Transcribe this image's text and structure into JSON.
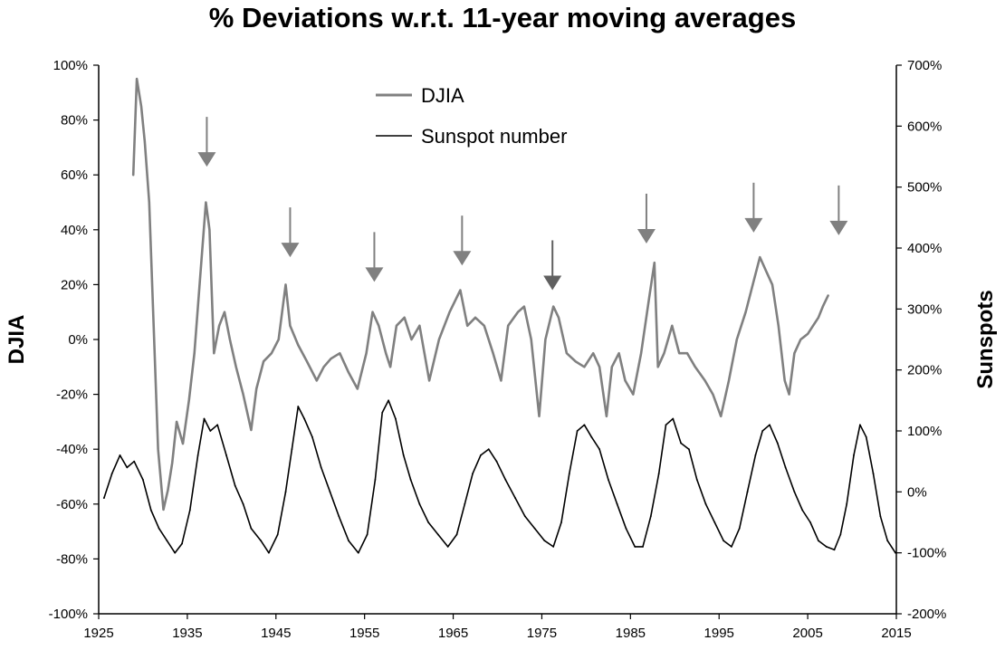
{
  "chart_data": {
    "type": "line",
    "title": "% Deviations w.r.t. 11-year moving averages",
    "xlabel": "",
    "ylabel": "DJIA",
    "y2label": "Sunspots",
    "xlim": [
      1925,
      2015
    ],
    "ylim": [
      -100,
      100
    ],
    "y2lim": [
      -200,
      700
    ],
    "x_ticks": [
      "1925",
      "1935",
      "1945",
      "1955",
      "1965",
      "1975",
      "1985",
      "1995",
      "2005",
      "2015"
    ],
    "y_ticks": [
      "100%",
      "80%",
      "60%",
      "40%",
      "20%",
      "0%",
      "-20%",
      "-40%",
      "-60%",
      "-80%",
      "-100%"
    ],
    "y2_ticks": [
      "700%",
      "600%",
      "500%",
      "400%",
      "300%",
      "200%",
      "100%",
      "0%",
      "-100%",
      "-200%"
    ],
    "legend": {
      "position": "top-center"
    },
    "grid": false,
    "series": [
      {
        "name": "DJIA",
        "axis": "left",
        "color": "#808080",
        "points": [
          [
            1928.9,
            60
          ],
          [
            1929.3,
            95
          ],
          [
            1929.8,
            85
          ],
          [
            1930.2,
            72
          ],
          [
            1930.7,
            50
          ],
          [
            1931.2,
            5
          ],
          [
            1931.7,
            -40
          ],
          [
            1932.3,
            -62
          ],
          [
            1932.8,
            -55
          ],
          [
            1933.3,
            -45
          ],
          [
            1933.8,
            -30
          ],
          [
            1934.5,
            -38
          ],
          [
            1935.2,
            -22
          ],
          [
            1935.8,
            -5
          ],
          [
            1936.5,
            25
          ],
          [
            1937.1,
            50
          ],
          [
            1937.5,
            40
          ],
          [
            1938.0,
            -5
          ],
          [
            1938.6,
            5
          ],
          [
            1939.2,
            10
          ],
          [
            1939.8,
            0
          ],
          [
            1940.5,
            -10
          ],
          [
            1941.3,
            -20
          ],
          [
            1942.2,
            -33
          ],
          [
            1942.8,
            -18
          ],
          [
            1943.6,
            -8
          ],
          [
            1944.5,
            -5
          ],
          [
            1945.3,
            0
          ],
          [
            1946.1,
            20
          ],
          [
            1946.6,
            5
          ],
          [
            1947.5,
            -2
          ],
          [
            1948.5,
            -8
          ],
          [
            1949.6,
            -15
          ],
          [
            1950.4,
            -10
          ],
          [
            1951.2,
            -7
          ],
          [
            1952.2,
            -5
          ],
          [
            1953.2,
            -12
          ],
          [
            1954.2,
            -18
          ],
          [
            1955.2,
            -5
          ],
          [
            1955.9,
            10
          ],
          [
            1956.6,
            5
          ],
          [
            1957.4,
            -5
          ],
          [
            1957.9,
            -10
          ],
          [
            1958.6,
            5
          ],
          [
            1959.5,
            8
          ],
          [
            1960.3,
            0
          ],
          [
            1961.2,
            5
          ],
          [
            1962.3,
            -15
          ],
          [
            1963.4,
            0
          ],
          [
            1964.6,
            10
          ],
          [
            1965.8,
            18
          ],
          [
            1966.6,
            5
          ],
          [
            1967.5,
            8
          ],
          [
            1968.5,
            5
          ],
          [
            1969.5,
            -5
          ],
          [
            1970.4,
            -15
          ],
          [
            1971.2,
            5
          ],
          [
            1972.3,
            10
          ],
          [
            1973.0,
            12
          ],
          [
            1973.8,
            0
          ],
          [
            1974.7,
            -28
          ],
          [
            1975.4,
            0
          ],
          [
            1976.3,
            12
          ],
          [
            1976.9,
            8
          ],
          [
            1977.8,
            -5
          ],
          [
            1978.8,
            -8
          ],
          [
            1979.8,
            -10
          ],
          [
            1980.8,
            -5
          ],
          [
            1981.5,
            -10
          ],
          [
            1982.3,
            -28
          ],
          [
            1982.9,
            -10
          ],
          [
            1983.7,
            -5
          ],
          [
            1984.4,
            -15
          ],
          [
            1985.3,
            -20
          ],
          [
            1986.2,
            -5
          ],
          [
            1987.1,
            15
          ],
          [
            1987.7,
            28
          ],
          [
            1988.1,
            -10
          ],
          [
            1988.8,
            -5
          ],
          [
            1989.7,
            5
          ],
          [
            1990.5,
            -5
          ],
          [
            1991.4,
            -5
          ],
          [
            1992.3,
            -10
          ],
          [
            1993.4,
            -15
          ],
          [
            1994.3,
            -20
          ],
          [
            1995.2,
            -28
          ],
          [
            1996.1,
            -15
          ],
          [
            1997.0,
            0
          ],
          [
            1998.0,
            10
          ],
          [
            1998.8,
            20
          ],
          [
            1999.6,
            30
          ],
          [
            2000.3,
            25
          ],
          [
            2001.0,
            20
          ],
          [
            2001.7,
            5
          ],
          [
            2002.4,
            -15
          ],
          [
            2002.9,
            -20
          ],
          [
            2003.5,
            -5
          ],
          [
            2004.2,
            0
          ],
          [
            2005.0,
            2
          ],
          [
            2005.6,
            5
          ],
          [
            2006.2,
            8
          ],
          [
            2006.7,
            12
          ],
          [
            2007.3,
            16
          ]
        ]
      },
      {
        "name": "Sunspot number",
        "axis": "right",
        "color": "#000000",
        "points": [
          [
            1925.6,
            -10
          ],
          [
            1926.5,
            30
          ],
          [
            1927.4,
            60
          ],
          [
            1928.2,
            40
          ],
          [
            1929.0,
            50
          ],
          [
            1930.0,
            20
          ],
          [
            1930.9,
            -30
          ],
          [
            1931.8,
            -60
          ],
          [
            1932.7,
            -80
          ],
          [
            1933.6,
            -100
          ],
          [
            1934.4,
            -85
          ],
          [
            1935.3,
            -30
          ],
          [
            1936.2,
            60
          ],
          [
            1936.9,
            120
          ],
          [
            1937.6,
            100
          ],
          [
            1938.4,
            110
          ],
          [
            1939.4,
            60
          ],
          [
            1940.4,
            10
          ],
          [
            1941.3,
            -20
          ],
          [
            1942.2,
            -60
          ],
          [
            1943.3,
            -80
          ],
          [
            1944.2,
            -100
          ],
          [
            1945.2,
            -70
          ],
          [
            1946.1,
            0
          ],
          [
            1946.8,
            70
          ],
          [
            1947.5,
            140
          ],
          [
            1948.2,
            120
          ],
          [
            1949.1,
            90
          ],
          [
            1950.1,
            40
          ],
          [
            1951.1,
            0
          ],
          [
            1952.1,
            -40
          ],
          [
            1953.2,
            -80
          ],
          [
            1954.3,
            -100
          ],
          [
            1955.3,
            -70
          ],
          [
            1956.2,
            20
          ],
          [
            1957.0,
            130
          ],
          [
            1957.7,
            150
          ],
          [
            1958.5,
            120
          ],
          [
            1959.4,
            60
          ],
          [
            1960.2,
            20
          ],
          [
            1961.2,
            -20
          ],
          [
            1962.2,
            -50
          ],
          [
            1963.3,
            -70
          ],
          [
            1964.4,
            -90
          ],
          [
            1965.4,
            -70
          ],
          [
            1966.3,
            -20
          ],
          [
            1967.2,
            30
          ],
          [
            1968.1,
            60
          ],
          [
            1969.0,
            70
          ],
          [
            1969.9,
            50
          ],
          [
            1970.9,
            20
          ],
          [
            1972.0,
            -10
          ],
          [
            1973.1,
            -40
          ],
          [
            1974.2,
            -60
          ],
          [
            1975.3,
            -80
          ],
          [
            1976.3,
            -90
          ],
          [
            1977.2,
            -50
          ],
          [
            1978.1,
            30
          ],
          [
            1979.0,
            100
          ],
          [
            1979.8,
            110
          ],
          [
            1980.6,
            90
          ],
          [
            1981.5,
            70
          ],
          [
            1982.5,
            20
          ],
          [
            1983.5,
            -20
          ],
          [
            1984.5,
            -60
          ],
          [
            1985.5,
            -90
          ],
          [
            1986.4,
            -90
          ],
          [
            1987.3,
            -40
          ],
          [
            1988.2,
            30
          ],
          [
            1989.0,
            110
          ],
          [
            1989.8,
            120
          ],
          [
            1990.7,
            80
          ],
          [
            1991.6,
            70
          ],
          [
            1992.5,
            20
          ],
          [
            1993.5,
            -20
          ],
          [
            1994.5,
            -50
          ],
          [
            1995.5,
            -80
          ],
          [
            1996.4,
            -90
          ],
          [
            1997.3,
            -60
          ],
          [
            1998.2,
            0
          ],
          [
            1999.1,
            60
          ],
          [
            1999.9,
            100
          ],
          [
            2000.7,
            110
          ],
          [
            2001.6,
            80
          ],
          [
            2002.5,
            40
          ],
          [
            2003.5,
            0
          ],
          [
            2004.4,
            -30
          ],
          [
            2005.3,
            -50
          ],
          [
            2006.2,
            -80
          ],
          [
            2007.1,
            -90
          ],
          [
            2008.0,
            -95
          ],
          [
            2008.7,
            -70
          ],
          [
            2009.4,
            -20
          ],
          [
            2010.2,
            60
          ],
          [
            2010.9,
            110
          ],
          [
            2011.6,
            90
          ],
          [
            2012.4,
            30
          ],
          [
            2013.2,
            -40
          ],
          [
            2014.0,
            -80
          ],
          [
            2014.9,
            -100
          ]
        ]
      }
    ],
    "annotations": [
      {
        "type": "arrow",
        "x": 1937.2,
        "y": 63,
        "color": "#808080"
      },
      {
        "type": "arrow",
        "x": 1946.6,
        "y": 30,
        "color": "#808080"
      },
      {
        "type": "arrow",
        "x": 1956.1,
        "y": 21,
        "color": "#808080"
      },
      {
        "type": "arrow",
        "x": 1966.0,
        "y": 27,
        "color": "#808080"
      },
      {
        "type": "arrow",
        "x": 1976.2,
        "y": 18,
        "color": "#606060"
      },
      {
        "type": "arrow",
        "x": 1986.8,
        "y": 35,
        "color": "#808080"
      },
      {
        "type": "arrow",
        "x": 1998.9,
        "y": 39,
        "color": "#808080"
      },
      {
        "type": "arrow",
        "x": 2008.5,
        "y": 38,
        "color": "#808080"
      }
    ]
  }
}
